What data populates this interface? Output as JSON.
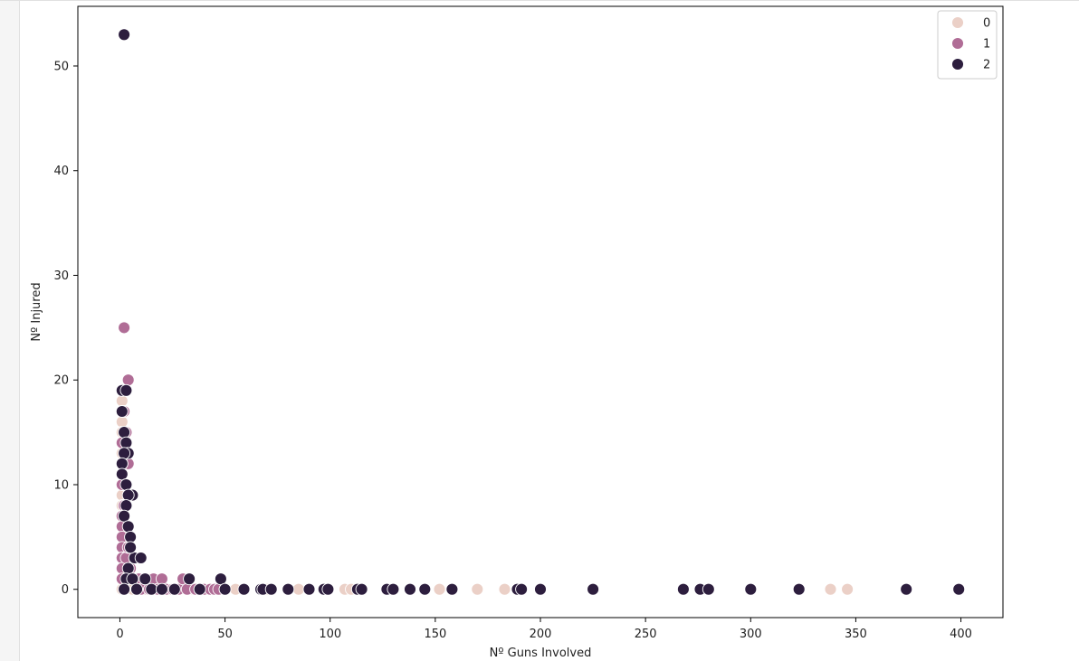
{
  "chart_data": {
    "type": "scatter",
    "title": "",
    "xlabel": "Nº Guns Involved",
    "ylabel": "Nº Injured",
    "xlim": [
      -20,
      420
    ],
    "ylim": [
      -2.7,
      55.7
    ],
    "xticks": [
      0,
      50,
      100,
      150,
      200,
      250,
      300,
      350,
      400
    ],
    "yticks": [
      0,
      10,
      20,
      30,
      40,
      50
    ],
    "grid": false,
    "legend_position": "top-right",
    "series": [
      {
        "name": "0",
        "color": "#ebd0c7",
        "points": [
          [
            1,
            18
          ],
          [
            1,
            17
          ],
          [
            1,
            16
          ],
          [
            1,
            15
          ],
          [
            1,
            14
          ],
          [
            1,
            13
          ],
          [
            1,
            12
          ],
          [
            1,
            11
          ],
          [
            1,
            10
          ],
          [
            1,
            9
          ],
          [
            1,
            8
          ],
          [
            1,
            7
          ],
          [
            1,
            6
          ],
          [
            1,
            5
          ],
          [
            1,
            4
          ],
          [
            1,
            3
          ],
          [
            1,
            2
          ],
          [
            1,
            1
          ],
          [
            1,
            0
          ],
          [
            2,
            10
          ],
          [
            2,
            8
          ],
          [
            3,
            6
          ],
          [
            3,
            4
          ],
          [
            4,
            2
          ],
          [
            5,
            1
          ],
          [
            6,
            0
          ],
          [
            8,
            1
          ],
          [
            10,
            0
          ],
          [
            12,
            0
          ],
          [
            15,
            1
          ],
          [
            18,
            0
          ],
          [
            22,
            0
          ],
          [
            28,
            0
          ],
          [
            35,
            0
          ],
          [
            42,
            0
          ],
          [
            55,
            0
          ],
          [
            70,
            0
          ],
          [
            85,
            0
          ],
          [
            98,
            0
          ],
          [
            107,
            0
          ],
          [
            110,
            0
          ],
          [
            152,
            0
          ],
          [
            170,
            0
          ],
          [
            183,
            0
          ],
          [
            189,
            0
          ],
          [
            338,
            0
          ],
          [
            346,
            0
          ]
        ]
      },
      {
        "name": "1",
        "color": "#b06d96",
        "points": [
          [
            2,
            25
          ],
          [
            4,
            20
          ],
          [
            2,
            17
          ],
          [
            3,
            15
          ],
          [
            1,
            14
          ],
          [
            4,
            12
          ],
          [
            1,
            12
          ],
          [
            1,
            10
          ],
          [
            2,
            8
          ],
          [
            1,
            7
          ],
          [
            1,
            6
          ],
          [
            1,
            5
          ],
          [
            1,
            4
          ],
          [
            1,
            3
          ],
          [
            1,
            2
          ],
          [
            1,
            1
          ],
          [
            2,
            0
          ],
          [
            3,
            3
          ],
          [
            4,
            4
          ],
          [
            5,
            2
          ],
          [
            6,
            1
          ],
          [
            7,
            3
          ],
          [
            8,
            0
          ],
          [
            9,
            1
          ],
          [
            10,
            0
          ],
          [
            12,
            1
          ],
          [
            14,
            0
          ],
          [
            16,
            1
          ],
          [
            18,
            0
          ],
          [
            20,
            1
          ],
          [
            22,
            0
          ],
          [
            25,
            0
          ],
          [
            28,
            0
          ],
          [
            30,
            1
          ],
          [
            32,
            0
          ],
          [
            36,
            0
          ],
          [
            38,
            0
          ],
          [
            40,
            0
          ],
          [
            43,
            0
          ],
          [
            45,
            0
          ],
          [
            47,
            0
          ],
          [
            50,
            0
          ]
        ]
      },
      {
        "name": "2",
        "color": "#2d1e3e",
        "points": [
          [
            2,
            53
          ],
          [
            1,
            19
          ],
          [
            3,
            19
          ],
          [
            1,
            17
          ],
          [
            2,
            15
          ],
          [
            3,
            14
          ],
          [
            4,
            13
          ],
          [
            2,
            13
          ],
          [
            1,
            12
          ],
          [
            1,
            11
          ],
          [
            3,
            10
          ],
          [
            6,
            9
          ],
          [
            4,
            9
          ],
          [
            3,
            8
          ],
          [
            2,
            7
          ],
          [
            4,
            6
          ],
          [
            5,
            5
          ],
          [
            7,
            3
          ],
          [
            10,
            3
          ],
          [
            5,
            4
          ],
          [
            4,
            2
          ],
          [
            3,
            1
          ],
          [
            2,
            0
          ],
          [
            6,
            1
          ],
          [
            8,
            0
          ],
          [
            12,
            1
          ],
          [
            15,
            0
          ],
          [
            20,
            0
          ],
          [
            26,
            0
          ],
          [
            33,
            1
          ],
          [
            38,
            0
          ],
          [
            48,
            1
          ],
          [
            50,
            0
          ],
          [
            59,
            0
          ],
          [
            67,
            0
          ],
          [
            68,
            0
          ],
          [
            72,
            0
          ],
          [
            80,
            0
          ],
          [
            90,
            0
          ],
          [
            97,
            0
          ],
          [
            99,
            0
          ],
          [
            113,
            0
          ],
          [
            115,
            0
          ],
          [
            127,
            0
          ],
          [
            130,
            0
          ],
          [
            138,
            0
          ],
          [
            145,
            0
          ],
          [
            158,
            0
          ],
          [
            189,
            0
          ],
          [
            191,
            0
          ],
          [
            200,
            0
          ],
          [
            225,
            0
          ],
          [
            268,
            0
          ],
          [
            276,
            0
          ],
          [
            280,
            0
          ],
          [
            300,
            0
          ],
          [
            323,
            0
          ],
          [
            374,
            0
          ],
          [
            399,
            0
          ]
        ]
      }
    ]
  }
}
